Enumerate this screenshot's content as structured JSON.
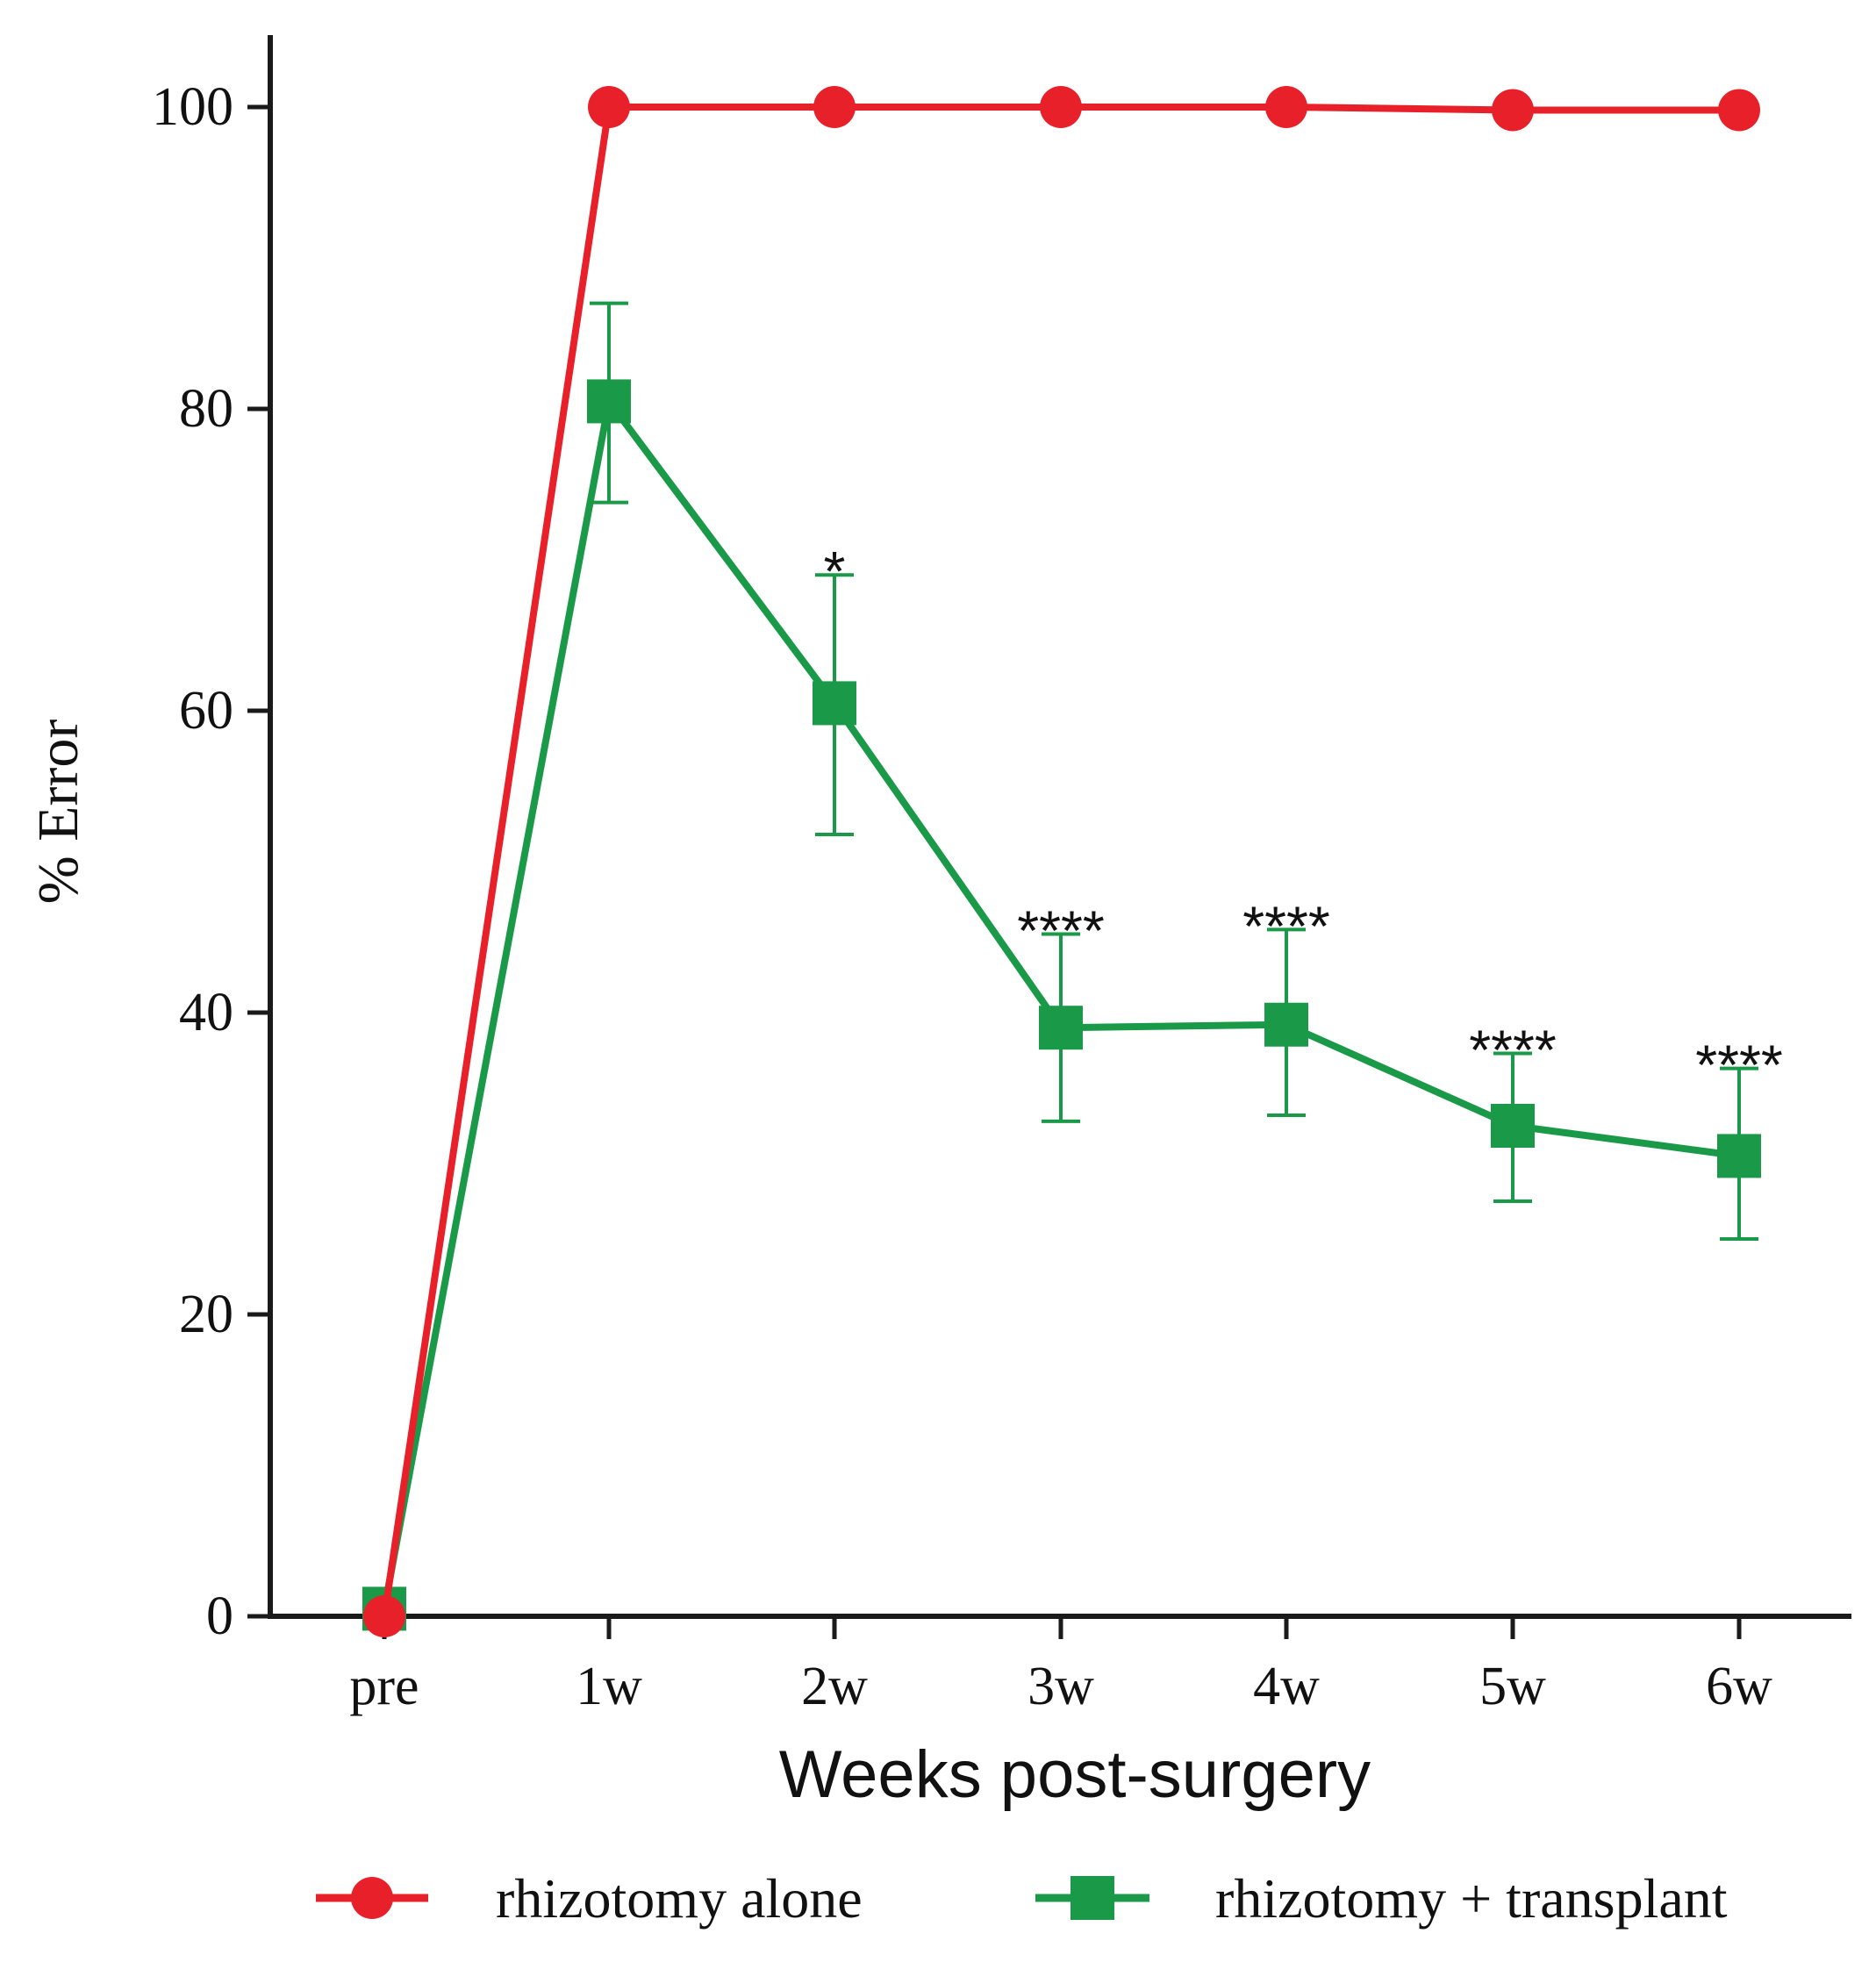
{
  "chart_data": {
    "type": "line",
    "categories": [
      "pre",
      "1w",
      "2w",
      "3w",
      "4w",
      "5w",
      "6w"
    ],
    "xlabel": "Weeks post-surgery",
    "ylabel": "% Error",
    "ylim": [
      0,
      100
    ],
    "yticks": [
      0,
      20,
      40,
      60,
      80,
      100
    ],
    "series": [
      {
        "name": "rhizotomy alone",
        "color": "#e8202a",
        "marker": "circle",
        "values": [
          0,
          100,
          100,
          100,
          100,
          99.8,
          99.8
        ]
      },
      {
        "name": "rhizotomy + transplant",
        "color": "#1a9a48",
        "marker": "square",
        "values": [
          0.5,
          80.5,
          60.5,
          39,
          39.2,
          32.5,
          30.5
        ],
        "error_upper": [
          null,
          87,
          69,
          45.2,
          45.5,
          37.3,
          36.3
        ],
        "error_lower": [
          null,
          73.8,
          51.8,
          32.8,
          33.2,
          27.5,
          25
        ]
      }
    ],
    "annotations": [
      {
        "category": "2w",
        "text": "*"
      },
      {
        "category": "3w",
        "text": "****"
      },
      {
        "category": "4w",
        "text": "****"
      },
      {
        "category": "5w",
        "text": "****"
      },
      {
        "category": "6w",
        "text": "****"
      }
    ],
    "legend_position": "bottom",
    "grid": false
  }
}
